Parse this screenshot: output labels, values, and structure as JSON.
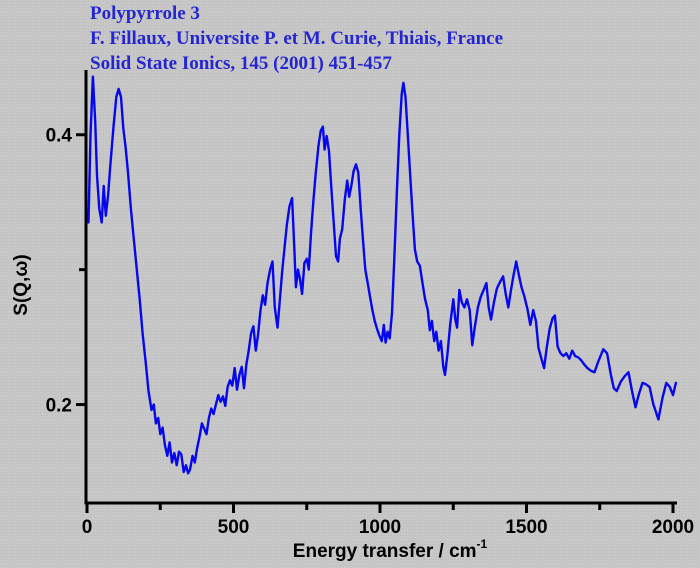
{
  "header": {
    "line1": "Polypyrrole 3",
    "line2": "F. Fillaux, Universite P. et M. Curie, Thiais, France",
    "line3": "Solid State Ionics, 145 (2001) 451-457",
    "color": "#2525d2"
  },
  "chart_data": {
    "type": "line",
    "title": "Polypyrrole 3 inelastic neutron scattering spectrum",
    "xlabel_base": "Energy transfer / cm",
    "xlabel_sup": "-1",
    "ylabel": "S(Q,ω)",
    "xlim": [
      0,
      2000
    ],
    "ylim": [
      0.127,
      0.448
    ],
    "xticks": [
      0,
      500,
      1000,
      1500,
      2000
    ],
    "x_tick_labels": [
      "0",
      "500",
      "1000",
      "1500",
      "2000"
    ],
    "x_minor_ticks": [
      250,
      750,
      1250,
      1750
    ],
    "yticks": [
      0.4,
      0.2
    ],
    "y_tick_labels": [
      "0.4",
      "0.2"
    ],
    "y_minor_ticks": [
      0.3
    ],
    "grid": false,
    "legend": "none",
    "line_color": "#0707ee",
    "axis_color": "#000000",
    "series": [
      {
        "name": "S(Q,w)",
        "points": [
          [
            5,
            0.335
          ],
          [
            12,
            0.4
          ],
          [
            20,
            0.443
          ],
          [
            28,
            0.41
          ],
          [
            34,
            0.37
          ],
          [
            42,
            0.345
          ],
          [
            50,
            0.335
          ],
          [
            57,
            0.362
          ],
          [
            64,
            0.34
          ],
          [
            72,
            0.355
          ],
          [
            80,
            0.378
          ],
          [
            90,
            0.405
          ],
          [
            100,
            0.428
          ],
          [
            108,
            0.434
          ],
          [
            116,
            0.428
          ],
          [
            124,
            0.405
          ],
          [
            132,
            0.39
          ],
          [
            140,
            0.372
          ],
          [
            150,
            0.345
          ],
          [
            160,
            0.322
          ],
          [
            170,
            0.3
          ],
          [
            180,
            0.278
          ],
          [
            190,
            0.252
          ],
          [
            200,
            0.232
          ],
          [
            210,
            0.21
          ],
          [
            220,
            0.196
          ],
          [
            228,
            0.2
          ],
          [
            235,
            0.186
          ],
          [
            243,
            0.19
          ],
          [
            250,
            0.178
          ],
          [
            258,
            0.183
          ],
          [
            266,
            0.17
          ],
          [
            274,
            0.162
          ],
          [
            282,
            0.172
          ],
          [
            290,
            0.157
          ],
          [
            298,
            0.164
          ],
          [
            306,
            0.155
          ],
          [
            314,
            0.165
          ],
          [
            322,
            0.163
          ],
          [
            330,
            0.15
          ],
          [
            338,
            0.155
          ],
          [
            345,
            0.149
          ],
          [
            352,
            0.152
          ],
          [
            360,
            0.162
          ],
          [
            368,
            0.157
          ],
          [
            376,
            0.168
          ],
          [
            384,
            0.176
          ],
          [
            392,
            0.186
          ],
          [
            400,
            0.182
          ],
          [
            408,
            0.178
          ],
          [
            416,
            0.19
          ],
          [
            424,
            0.197
          ],
          [
            432,
            0.193
          ],
          [
            440,
            0.2
          ],
          [
            448,
            0.207
          ],
          [
            456,
            0.202
          ],
          [
            464,
            0.206
          ],
          [
            472,
            0.199
          ],
          [
            480,
            0.213
          ],
          [
            488,
            0.218
          ],
          [
            496,
            0.214
          ],
          [
            504,
            0.227
          ],
          [
            512,
            0.211
          ],
          [
            520,
            0.222
          ],
          [
            528,
            0.228
          ],
          [
            536,
            0.212
          ],
          [
            544,
            0.23
          ],
          [
            552,
            0.24
          ],
          [
            560,
            0.253
          ],
          [
            568,
            0.258
          ],
          [
            576,
            0.24
          ],
          [
            584,
            0.252
          ],
          [
            592,
            0.27
          ],
          [
            600,
            0.281
          ],
          [
            608,
            0.274
          ],
          [
            616,
            0.29
          ],
          [
            625,
            0.3
          ],
          [
            633,
            0.306
          ],
          [
            641,
            0.272
          ],
          [
            650,
            0.257
          ],
          [
            658,
            0.277
          ],
          [
            666,
            0.298
          ],
          [
            674,
            0.316
          ],
          [
            682,
            0.333
          ],
          [
            691,
            0.347
          ],
          [
            700,
            0.353
          ],
          [
            707,
            0.318
          ],
          [
            713,
            0.287
          ],
          [
            720,
            0.3
          ],
          [
            727,
            0.293
          ],
          [
            734,
            0.282
          ],
          [
            742,
            0.305
          ],
          [
            750,
            0.308
          ],
          [
            757,
            0.3
          ],
          [
            765,
            0.328
          ],
          [
            773,
            0.352
          ],
          [
            781,
            0.372
          ],
          [
            790,
            0.392
          ],
          [
            798,
            0.403
          ],
          [
            805,
            0.406
          ],
          [
            811,
            0.389
          ],
          [
            818,
            0.399
          ],
          [
            826,
            0.388
          ],
          [
            834,
            0.36
          ],
          [
            842,
            0.335
          ],
          [
            850,
            0.31
          ],
          [
            857,
            0.306
          ],
          [
            863,
            0.323
          ],
          [
            871,
            0.33
          ],
          [
            880,
            0.352
          ],
          [
            888,
            0.366
          ],
          [
            895,
            0.354
          ],
          [
            902,
            0.362
          ],
          [
            910,
            0.373
          ],
          [
            918,
            0.378
          ],
          [
            926,
            0.372
          ],
          [
            934,
            0.345
          ],
          [
            942,
            0.322
          ],
          [
            950,
            0.3
          ],
          [
            958,
            0.29
          ],
          [
            966,
            0.28
          ],
          [
            974,
            0.27
          ],
          [
            982,
            0.262
          ],
          [
            990,
            0.256
          ],
          [
            998,
            0.251
          ],
          [
            1006,
            0.247
          ],
          [
            1013,
            0.259
          ],
          [
            1019,
            0.246
          ],
          [
            1026,
            0.254
          ],
          [
            1033,
            0.249
          ],
          [
            1041,
            0.268
          ],
          [
            1049,
            0.31
          ],
          [
            1058,
            0.36
          ],
          [
            1066,
            0.4
          ],
          [
            1074,
            0.43
          ],
          [
            1080,
            0.4385
          ],
          [
            1087,
            0.428
          ],
          [
            1095,
            0.4
          ],
          [
            1103,
            0.37
          ],
          [
            1111,
            0.342
          ],
          [
            1119,
            0.315
          ],
          [
            1127,
            0.306
          ],
          [
            1136,
            0.303
          ],
          [
            1145,
            0.29
          ],
          [
            1154,
            0.278
          ],
          [
            1163,
            0.27
          ],
          [
            1170,
            0.255
          ],
          [
            1177,
            0.262
          ],
          [
            1185,
            0.247
          ],
          [
            1192,
            0.254
          ],
          [
            1200,
            0.24
          ],
          [
            1208,
            0.247
          ],
          [
            1216,
            0.228
          ],
          [
            1222,
            0.222
          ],
          [
            1230,
            0.237
          ],
          [
            1240,
            0.26
          ],
          [
            1250,
            0.278
          ],
          [
            1257,
            0.263
          ],
          [
            1263,
            0.257
          ],
          [
            1271,
            0.285
          ],
          [
            1279,
            0.276
          ],
          [
            1288,
            0.272
          ],
          [
            1297,
            0.278
          ],
          [
            1306,
            0.27
          ],
          [
            1315,
            0.244
          ],
          [
            1324,
            0.258
          ],
          [
            1334,
            0.272
          ],
          [
            1344,
            0.28
          ],
          [
            1354,
            0.285
          ],
          [
            1363,
            0.29
          ],
          [
            1371,
            0.272
          ],
          [
            1379,
            0.263
          ],
          [
            1389,
            0.276
          ],
          [
            1399,
            0.286
          ],
          [
            1410,
            0.291
          ],
          [
            1420,
            0.295
          ],
          [
            1429,
            0.282
          ],
          [
            1438,
            0.272
          ],
          [
            1447,
            0.285
          ],
          [
            1456,
            0.296
          ],
          [
            1465,
            0.306
          ],
          [
            1474,
            0.296
          ],
          [
            1483,
            0.287
          ],
          [
            1493,
            0.28
          ],
          [
            1503,
            0.271
          ],
          [
            1513,
            0.259
          ],
          [
            1523,
            0.27
          ],
          [
            1532,
            0.262
          ],
          [
            1541,
            0.242
          ],
          [
            1551,
            0.234
          ],
          [
            1560,
            0.227
          ],
          [
            1569,
            0.242
          ],
          [
            1579,
            0.256
          ],
          [
            1589,
            0.264
          ],
          [
            1597,
            0.266
          ],
          [
            1606,
            0.243
          ],
          [
            1616,
            0.238
          ],
          [
            1626,
            0.236
          ],
          [
            1636,
            0.238
          ],
          [
            1646,
            0.234
          ],
          [
            1656,
            0.24
          ],
          [
            1666,
            0.236
          ],
          [
            1676,
            0.235
          ],
          [
            1686,
            0.233
          ],
          [
            1696,
            0.23
          ],
          [
            1708,
            0.227
          ],
          [
            1720,
            0.225
          ],
          [
            1732,
            0.224
          ],
          [
            1745,
            0.232
          ],
          [
            1762,
            0.241
          ],
          [
            1775,
            0.238
          ],
          [
            1788,
            0.222
          ],
          [
            1798,
            0.212
          ],
          [
            1808,
            0.21
          ],
          [
            1822,
            0.217
          ],
          [
            1835,
            0.221
          ],
          [
            1848,
            0.224
          ],
          [
            1860,
            0.21
          ],
          [
            1872,
            0.198
          ],
          [
            1884,
            0.208
          ],
          [
            1896,
            0.216
          ],
          [
            1908,
            0.215
          ],
          [
            1920,
            0.213
          ],
          [
            1933,
            0.2
          ],
          [
            1950,
            0.189
          ],
          [
            1964,
            0.205
          ],
          [
            1977,
            0.216
          ],
          [
            1989,
            0.213
          ],
          [
            2000,
            0.207
          ],
          [
            2010,
            0.216
          ]
        ]
      }
    ]
  }
}
